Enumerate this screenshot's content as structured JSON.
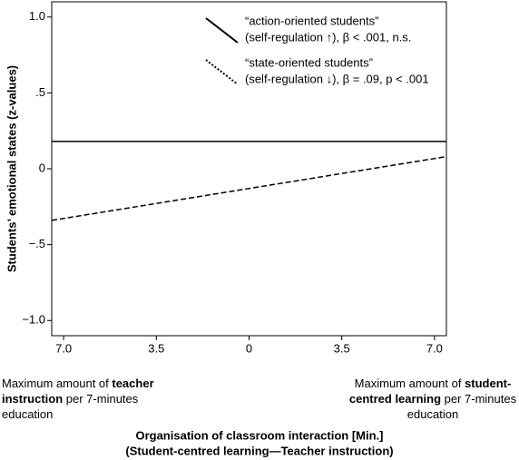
{
  "chart_data": {
    "type": "line",
    "y_label": "Students’ emotional states (z-values)",
    "x_label_lines": [
      "Organisation of classroom interaction [Min.]",
      "(Student-centred learning—Teacher instruction)"
    ],
    "xlim": [
      -7.45,
      7.45
    ],
    "ylim": [
      -1.1,
      1.1
    ],
    "xticks": [
      {
        "value": -7,
        "label": "7.0"
      },
      {
        "value": -3.5,
        "label": "3.5"
      },
      0,
      {
        "value": 3.5,
        "label": "3.5"
      },
      {
        "value": 7,
        "label": "7.0"
      }
    ],
    "yticks": [
      {
        "value": 1,
        "label": "1.0"
      },
      {
        "value": 0.5,
        "label": ".5"
      },
      0,
      {
        "value": -0.5,
        "label": "−.5"
      },
      {
        "value": -1,
        "label": "−1.0"
      }
    ],
    "series": [
      {
        "name": "“action-oriented students”",
        "detail": "(self-regulation ↑), β < .001, n.s.",
        "color": "#000000",
        "dash": "solid",
        "x": [
          -7.45,
          7.45
        ],
        "values": [
          0.18,
          0.18
        ]
      },
      {
        "name": "“state-oriented students”",
        "detail": "(self-regulation ↓), β = .09, p < .001",
        "color": "#000000",
        "dash": "dashed",
        "x": [
          -7.45,
          7.45
        ],
        "values": [
          -0.34,
          0.08
        ]
      }
    ],
    "left_note": [
      [
        {
          "text": "Maximum amount of "
        },
        {
          "text": "teacher",
          "bold": true
        }
      ],
      [
        {
          "text": "instruction",
          "bold": true
        },
        {
          "text": " per 7-minutes"
        }
      ],
      [
        {
          "text": "education"
        }
      ]
    ],
    "right_note": [
      [
        {
          "text": "Maximum amount of "
        },
        {
          "text": "student-",
          "bold": true
        }
      ],
      [
        {
          "text": "centred learning",
          "bold": true
        },
        {
          "text": " per 7-minutes"
        }
      ],
      [
        {
          "text": "education"
        }
      ]
    ]
  }
}
